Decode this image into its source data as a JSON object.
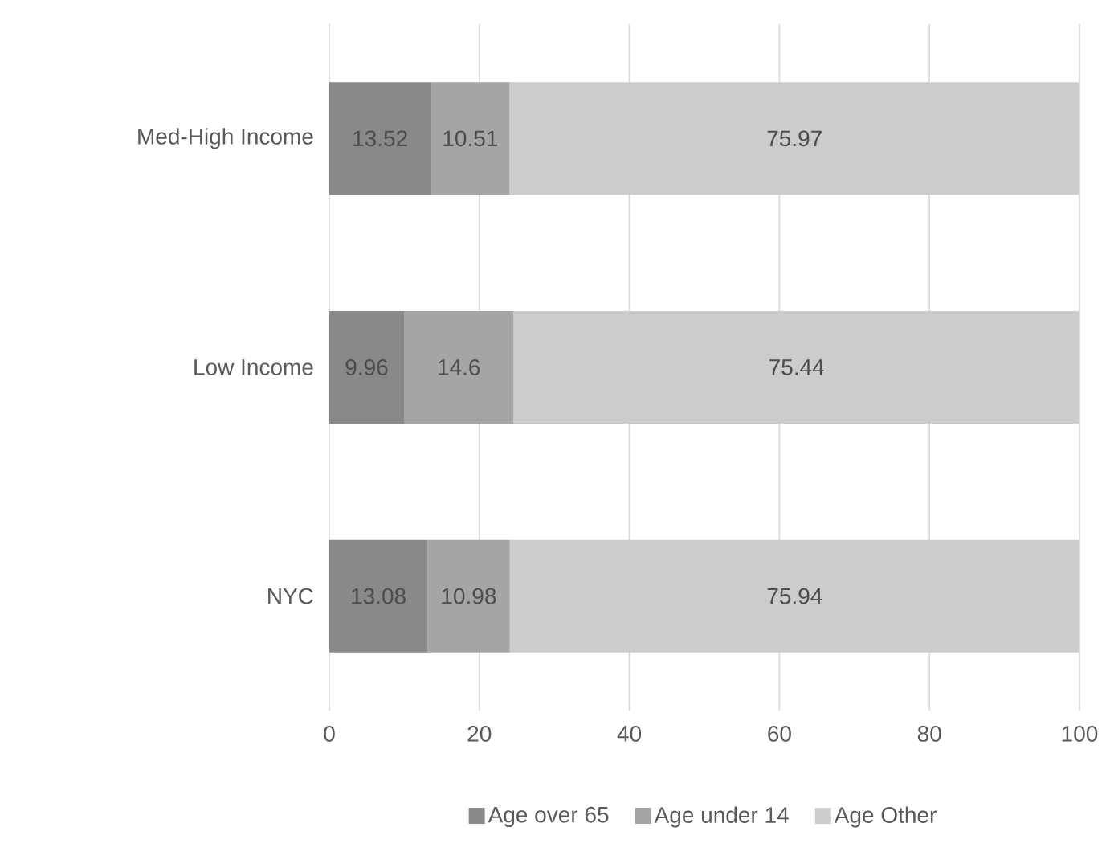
{
  "chart_data": {
    "type": "bar",
    "orientation": "horizontal",
    "stacked": true,
    "categories": [
      "Med-High Income",
      "Low Income",
      "NYC"
    ],
    "series": [
      {
        "name": "Age over 65",
        "color": "#898989",
        "values": [
          13.52,
          9.96,
          13.08
        ]
      },
      {
        "name": "Age under 14",
        "color": "#a5a5a5",
        "values": [
          10.51,
          14.6,
          10.98
        ]
      },
      {
        "name": "Age Other",
        "color": "#cccccc",
        "values": [
          75.97,
          75.44,
          75.94
        ]
      }
    ],
    "xlim": [
      0,
      100
    ],
    "xticks": [
      0,
      20,
      40,
      60,
      80,
      100
    ],
    "grid": "x",
    "legend": "bottom",
    "data_labels": true
  }
}
